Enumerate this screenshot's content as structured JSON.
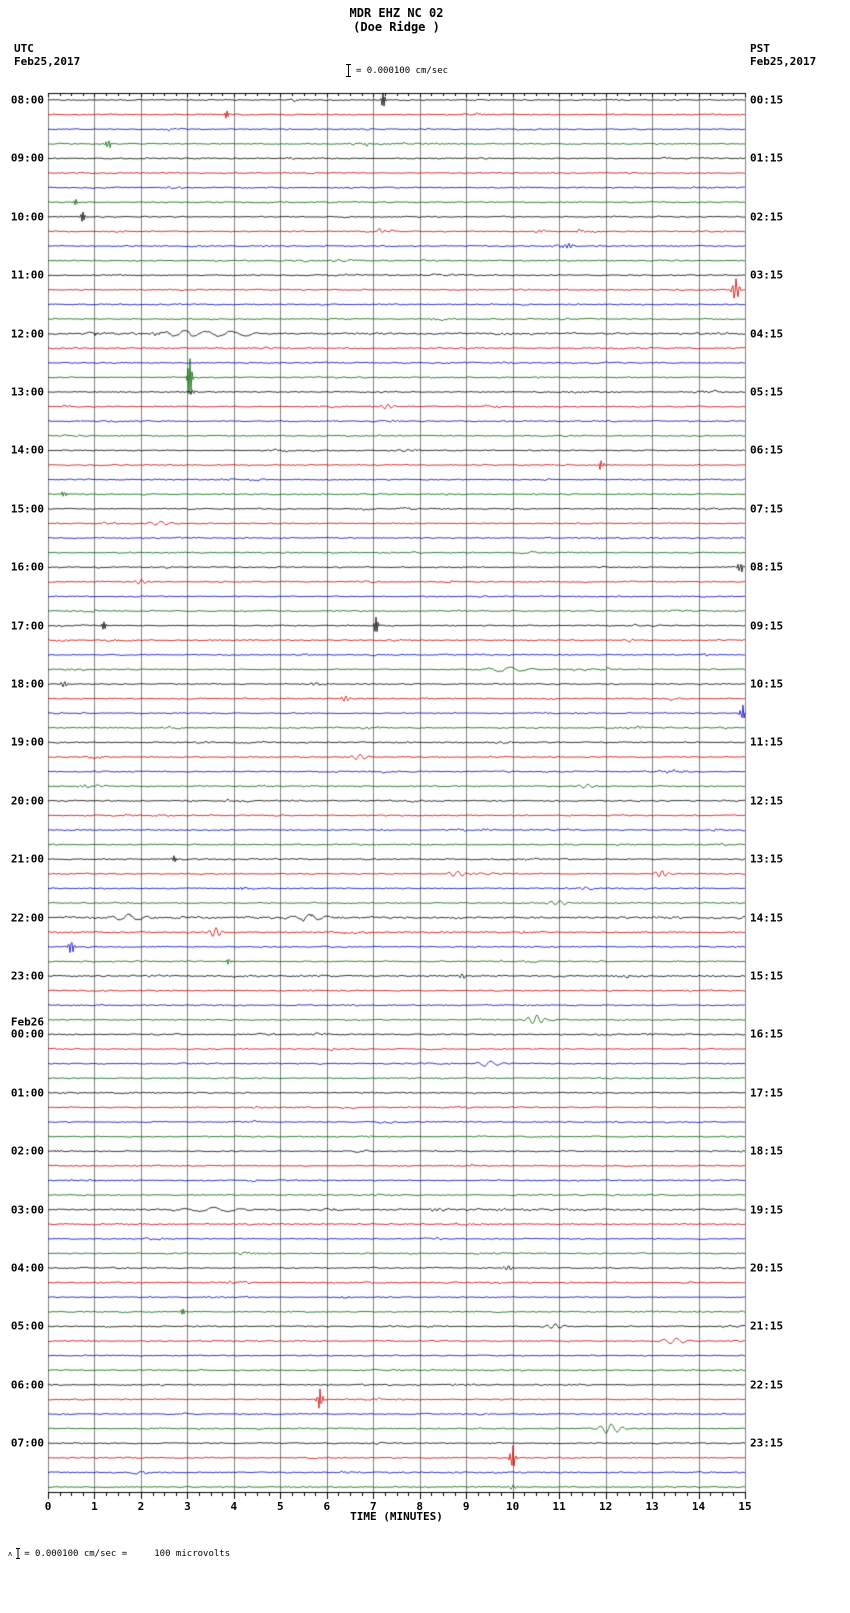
{
  "header": {
    "title": "MDR EHZ NC 02",
    "subtitle": "(Doe Ridge )",
    "scale_label": "= 0.000100 cm/sec",
    "left_tz": "UTC",
    "left_date": "Feb25,2017",
    "right_tz": "PST",
    "right_date": "Feb25,2017"
  },
  "footer": {
    "prefix": "ʌ",
    "note": "= 0.000100 cm/sec =     100 microvolts"
  },
  "chart_data": {
    "type": "line",
    "title": "MDR EHZ NC 02 (Doe Ridge) 24-hour helicorder record",
    "xlabel": "TIME (MINUTES)",
    "x_range": [
      0,
      15
    ],
    "x_ticks": [
      0,
      1,
      2,
      3,
      4,
      5,
      6,
      7,
      8,
      9,
      10,
      11,
      12,
      13,
      14,
      15
    ],
    "minutes_per_line": 15,
    "lines_per_hour": 4,
    "rows": 96,
    "trace_colors": [
      "#000000",
      "#cc0000",
      "#0000bb",
      "#006400"
    ],
    "grid_color": "#808080",
    "utc_hour_labels": [
      "08:00",
      "09:00",
      "10:00",
      "11:00",
      "12:00",
      "13:00",
      "14:00",
      "15:00",
      "16:00",
      "17:00",
      "18:00",
      "19:00",
      "20:00",
      "21:00",
      "22:00",
      "23:00",
      "00:00",
      "01:00",
      "02:00",
      "03:00",
      "04:00",
      "05:00",
      "06:00",
      "07:00"
    ],
    "utc_day_break": {
      "hour_index": 16,
      "label": "Feb26"
    },
    "pst_hour_labels": [
      "00:15",
      "01:15",
      "02:15",
      "03:15",
      "04:15",
      "05:15",
      "06:15",
      "07:15",
      "08:15",
      "09:15",
      "10:15",
      "11:15",
      "12:15",
      "13:15",
      "14:15",
      "15:15",
      "16:15",
      "17:15",
      "18:15",
      "19:15",
      "20:15",
      "21:15",
      "22:15",
      "23:15"
    ],
    "noisy_rows": {
      "12": 1.15,
      "16": 1.7,
      "17": 1.2,
      "44": 1.25,
      "48": 1.15,
      "52": 1.15,
      "56": 1.9,
      "57": 1.3,
      "60": 1.4,
      "64": 1.2,
      "68": 1.1,
      "76": 1.5
    },
    "events": [
      [
        0,
        7.2,
        9,
        0.05
      ],
      [
        1,
        3.85,
        4,
        0.05
      ],
      [
        3,
        1.3,
        5,
        0.06
      ],
      [
        7,
        0.6,
        3,
        0.05
      ],
      [
        8,
        0.75,
        5,
        0.05
      ],
      [
        10,
        11.2,
        2.5,
        0.08
      ],
      [
        13,
        14.8,
        11,
        0.08
      ],
      [
        16,
        2.9,
        3,
        0.45
      ],
      [
        16,
        3.9,
        2.5,
        0.6
      ],
      [
        19,
        3.05,
        19,
        0.045
      ],
      [
        20,
        3.1,
        3,
        0.06
      ],
      [
        21,
        7.3,
        2.6,
        0.15
      ],
      [
        25,
        11.9,
        5,
        0.06
      ],
      [
        27,
        0.35,
        6,
        0.05
      ],
      [
        29,
        2.4,
        2.2,
        0.25
      ],
      [
        32,
        14.9,
        6,
        0.06
      ],
      [
        33,
        2.0,
        2.2,
        0.15
      ],
      [
        36,
        1.2,
        4,
        0.05
      ],
      [
        36,
        7.05,
        9,
        0.05
      ],
      [
        39,
        9.9,
        2.4,
        0.5
      ],
      [
        40,
        0.35,
        3,
        0.08
      ],
      [
        41,
        6.4,
        3,
        0.1
      ],
      [
        42,
        14.95,
        8,
        0.06
      ],
      [
        45,
        6.7,
        3,
        0.2
      ],
      [
        47,
        11.6,
        2.2,
        0.2
      ],
      [
        52,
        2.7,
        5,
        0.05
      ],
      [
        53,
        8.8,
        3,
        0.2
      ],
      [
        53,
        13.2,
        3.5,
        0.15
      ],
      [
        55,
        11.0,
        2.4,
        0.2
      ],
      [
        56,
        1.7,
        3,
        0.4
      ],
      [
        56,
        5.6,
        3,
        0.4
      ],
      [
        57,
        3.6,
        4.5,
        0.15
      ],
      [
        58,
        0.5,
        7,
        0.07
      ],
      [
        59,
        3.9,
        6,
        0.05
      ],
      [
        60,
        8.9,
        2.2,
        0.1
      ],
      [
        63,
        10.5,
        4.5,
        0.2
      ],
      [
        66,
        9.5,
        2.4,
        0.3
      ],
      [
        72,
        0.2,
        3,
        0.05
      ],
      [
        76,
        3.5,
        2.2,
        0.6
      ],
      [
        80,
        9.9,
        2.4,
        0.1
      ],
      [
        83,
        2.9,
        3,
        0.05
      ],
      [
        84,
        10.9,
        2.6,
        0.2
      ],
      [
        85,
        13.5,
        3,
        0.3
      ],
      [
        89,
        5.85,
        11,
        0.06
      ],
      [
        91,
        12.1,
        5,
        0.25
      ],
      [
        93,
        10.0,
        13,
        0.06
      ],
      [
        95,
        10.0,
        2,
        0.1
      ]
    ]
  }
}
